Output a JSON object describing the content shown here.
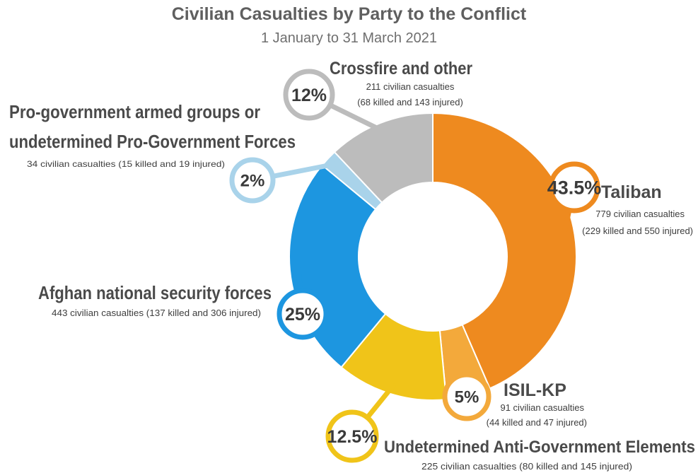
{
  "title": "Civilian Casualties by Party to the Conflict",
  "subtitle": "1 January to 31 March 2021",
  "chart_data": {
    "type": "pie",
    "variant": "donut",
    "title": "Civilian Casualties by Party to the Conflict",
    "subtitle": "1 January to 31 March 2021",
    "slices": [
      {
        "name": "Taliban",
        "percent": 43.5,
        "percent_label": "43.5%",
        "casualties": 779,
        "killed": 229,
        "injured": 550,
        "detail_line1": "779 civilian casualties",
        "detail_line2": "(229 killed and 550 injured)",
        "color": "#ee8a1f"
      },
      {
        "name": "ISIL-KP",
        "percent": 5,
        "percent_label": "5%",
        "casualties": 91,
        "killed": 44,
        "injured": 47,
        "detail_line1": "91 civilian casualties",
        "detail_line2": "(44 killed and 47 injured)",
        "color": "#f3a93b"
      },
      {
        "name": "Undetermined Anti-Government Elements",
        "percent": 12.5,
        "percent_label": "12.5%",
        "casualties": 225,
        "killed": 80,
        "injured": 145,
        "detail_line1": "225 civilian casualties (80 killed and 145 injured)",
        "color": "#f0c419"
      },
      {
        "name": "Afghan national security forces",
        "percent": 25,
        "percent_label": "25%",
        "casualties": 443,
        "killed": 137,
        "injured": 306,
        "detail_line1": "443 civilian casualties (137 killed and 306 injured)",
        "color": "#1d96e0"
      },
      {
        "name_line1": "Pro-government armed groups or",
        "name_line2": "undetermined Pro-Government Forces",
        "percent": 2,
        "percent_label": "2%",
        "casualties": 34,
        "killed": 15,
        "injured": 19,
        "detail_line1": "34 civilian casualties (15 killed and 19 injured)",
        "color": "#a9d3ea"
      },
      {
        "name": "Crossfire and other",
        "percent": 12,
        "percent_label": "12%",
        "casualties": 211,
        "killed": 68,
        "injured": 143,
        "detail_line1": "211 civilian casualties",
        "detail_line2": "(68 killed and 143 injured)",
        "color": "#bcbcbc"
      }
    ]
  }
}
